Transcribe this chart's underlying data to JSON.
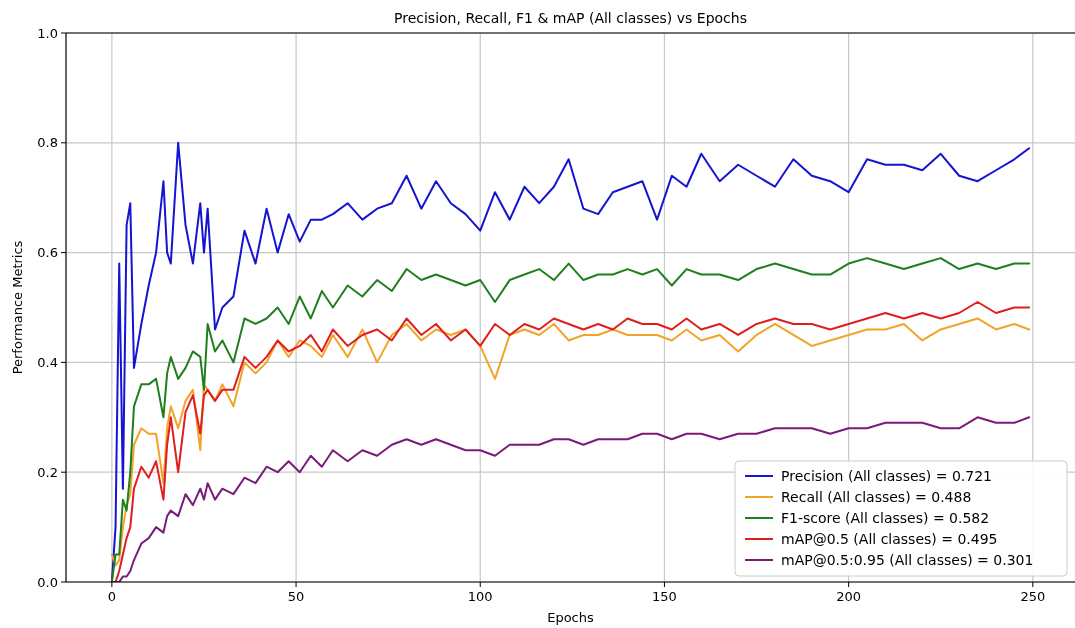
{
  "chart_data": {
    "type": "line",
    "title": "Precision, Recall, F1 & mAP (All classes) vs Epochs",
    "xlabel": "Epochs",
    "ylabel": "Performance Metrics",
    "x": [
      0,
      1,
      2,
      3,
      4,
      5,
      6,
      8,
      10,
      12,
      14,
      15,
      16,
      18,
      20,
      22,
      24,
      25,
      26,
      28,
      30,
      33,
      36,
      39,
      42,
      45,
      48,
      51,
      54,
      57,
      60,
      64,
      68,
      72,
      76,
      80,
      84,
      88,
      92,
      96,
      100,
      104,
      108,
      112,
      116,
      120,
      124,
      128,
      132,
      136,
      140,
      144,
      148,
      152,
      156,
      160,
      165,
      170,
      175,
      180,
      185,
      190,
      195,
      200,
      205,
      210,
      215,
      220,
      225,
      230,
      235,
      240,
      245,
      249
    ],
    "xlim": [
      -12.45,
      261.45
    ],
    "xticks": [
      0,
      50,
      100,
      150,
      200,
      250
    ],
    "ylim": [
      0,
      1
    ],
    "yticks": [
      {
        "value": 0,
        "label": "0.0"
      },
      {
        "value": 0.2,
        "label": "0.2"
      },
      {
        "value": 0.4,
        "label": "0.4"
      },
      {
        "value": 0.6,
        "label": "0.6"
      },
      {
        "value": 0.8,
        "label": "0.8"
      },
      {
        "value": 1,
        "label": "1.0"
      }
    ],
    "grid": true,
    "legend": "bottom right",
    "line_style": "solid",
    "series": [
      {
        "name": "Precision (All classes) = 0.721",
        "color": "#1414d2",
        "values": [
          0,
          0.1,
          0.58,
          0.17,
          0.65,
          0.69,
          0.39,
          0.47,
          0.54,
          0.6,
          0.73,
          0.6,
          0.58,
          0.8,
          0.65,
          0.58,
          0.69,
          0.6,
          0.68,
          0.46,
          0.5,
          0.52,
          0.64,
          0.58,
          0.68,
          0.6,
          0.67,
          0.62,
          0.66,
          0.66,
          0.67,
          0.69,
          0.66,
          0.68,
          0.69,
          0.74,
          0.68,
          0.73,
          0.69,
          0.67,
          0.64,
          0.71,
          0.66,
          0.72,
          0.69,
          0.72,
          0.77,
          0.68,
          0.67,
          0.71,
          0.72,
          0.73,
          0.66,
          0.74,
          0.72,
          0.78,
          0.73,
          0.76,
          0.74,
          0.72,
          0.77,
          0.74,
          0.73,
          0.71,
          0.77,
          0.76,
          0.76,
          0.75,
          0.78,
          0.74,
          0.73,
          0.75,
          0.77,
          0.79
        ]
      },
      {
        "name": "Recall (All classes) = 0.488",
        "color": "#f0a428",
        "values": [
          0.05,
          0.03,
          0.04,
          0.1,
          0.14,
          0.16,
          0.25,
          0.28,
          0.27,
          0.27,
          0.18,
          0.28,
          0.32,
          0.28,
          0.33,
          0.35,
          0.24,
          0.36,
          0.35,
          0.33,
          0.36,
          0.32,
          0.4,
          0.38,
          0.4,
          0.44,
          0.41,
          0.44,
          0.43,
          0.41,
          0.45,
          0.41,
          0.46,
          0.4,
          0.45,
          0.47,
          0.44,
          0.46,
          0.45,
          0.46,
          0.43,
          0.37,
          0.45,
          0.46,
          0.45,
          0.47,
          0.44,
          0.45,
          0.45,
          0.46,
          0.45,
          0.45,
          0.45,
          0.44,
          0.46,
          0.44,
          0.45,
          0.42,
          0.45,
          0.47,
          0.45,
          0.43,
          0.44,
          0.45,
          0.46,
          0.46,
          0.47,
          0.44,
          0.46,
          0.47,
          0.48,
          0.46,
          0.47,
          0.46
        ]
      },
      {
        "name": "F1-score (All classes) = 0.582",
        "color": "#1f7f1f",
        "values": [
          0,
          0.05,
          0.05,
          0.15,
          0.13,
          0.2,
          0.32,
          0.36,
          0.36,
          0.37,
          0.3,
          0.38,
          0.41,
          0.37,
          0.39,
          0.42,
          0.41,
          0.35,
          0.47,
          0.42,
          0.44,
          0.4,
          0.48,
          0.47,
          0.48,
          0.5,
          0.47,
          0.52,
          0.48,
          0.53,
          0.5,
          0.54,
          0.52,
          0.55,
          0.53,
          0.57,
          0.55,
          0.56,
          0.55,
          0.54,
          0.55,
          0.51,
          0.55,
          0.56,
          0.57,
          0.55,
          0.58,
          0.55,
          0.56,
          0.56,
          0.57,
          0.56,
          0.57,
          0.54,
          0.57,
          0.56,
          0.56,
          0.55,
          0.57,
          0.58,
          0.57,
          0.56,
          0.56,
          0.58,
          0.59,
          0.58,
          0.57,
          0.58,
          0.59,
          0.57,
          0.58,
          0.57,
          0.58,
          0.58
        ]
      },
      {
        "name": "mAP@0.5 (All classes) = 0.495",
        "color": "#e01e1e",
        "values": [
          0,
          0,
          0.02,
          0.05,
          0.08,
          0.1,
          0.17,
          0.21,
          0.19,
          0.22,
          0.15,
          0.25,
          0.3,
          0.2,
          0.31,
          0.34,
          0.27,
          0.34,
          0.35,
          0.33,
          0.35,
          0.35,
          0.41,
          0.39,
          0.41,
          0.44,
          0.42,
          0.43,
          0.45,
          0.42,
          0.46,
          0.43,
          0.45,
          0.46,
          0.44,
          0.48,
          0.45,
          0.47,
          0.44,
          0.46,
          0.43,
          0.47,
          0.45,
          0.47,
          0.46,
          0.48,
          0.47,
          0.46,
          0.47,
          0.46,
          0.48,
          0.47,
          0.47,
          0.46,
          0.48,
          0.46,
          0.47,
          0.45,
          0.47,
          0.48,
          0.47,
          0.47,
          0.46,
          0.47,
          0.48,
          0.49,
          0.48,
          0.49,
          0.48,
          0.49,
          0.51,
          0.49,
          0.5,
          0.5
        ]
      },
      {
        "name": "mAP@0.5:0.95 (All classes) = 0.301",
        "color": "#7a1a7a",
        "values": [
          0,
          0,
          0,
          0.01,
          0.01,
          0.02,
          0.04,
          0.07,
          0.08,
          0.1,
          0.09,
          0.12,
          0.13,
          0.12,
          0.16,
          0.14,
          0.17,
          0.15,
          0.18,
          0.15,
          0.17,
          0.16,
          0.19,
          0.18,
          0.21,
          0.2,
          0.22,
          0.2,
          0.23,
          0.21,
          0.24,
          0.22,
          0.24,
          0.23,
          0.25,
          0.26,
          0.25,
          0.26,
          0.25,
          0.24,
          0.24,
          0.23,
          0.25,
          0.25,
          0.25,
          0.26,
          0.26,
          0.25,
          0.26,
          0.26,
          0.26,
          0.27,
          0.27,
          0.26,
          0.27,
          0.27,
          0.26,
          0.27,
          0.27,
          0.28,
          0.28,
          0.28,
          0.27,
          0.28,
          0.28,
          0.29,
          0.29,
          0.29,
          0.28,
          0.28,
          0.3,
          0.29,
          0.29,
          0.3
        ]
      }
    ]
  }
}
